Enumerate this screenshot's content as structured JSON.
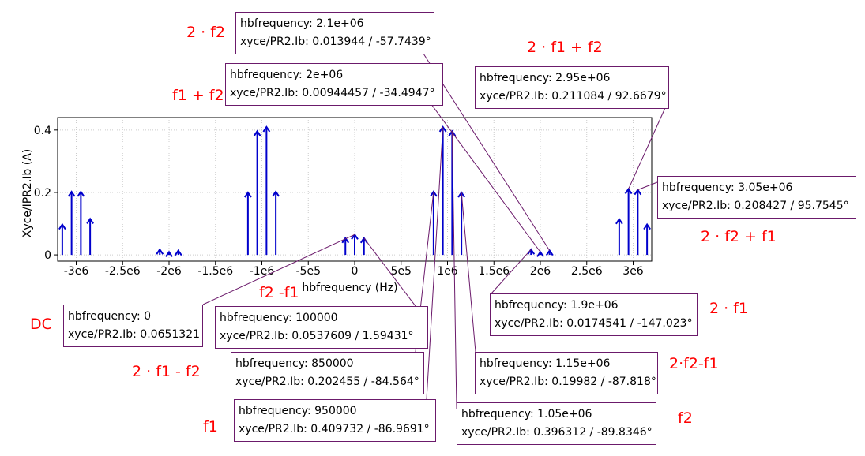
{
  "chart_data": {
    "type": "stem",
    "xlabel": "hbfrequency (Hz)",
    "ylabel": "Xyce/IPR2.Ib (A)",
    "xlim": [
      -3200000,
      3200000
    ],
    "ylim": [
      -0.02,
      0.44
    ],
    "x_ticks": [
      {
        "value": -3000000,
        "label": "-3e6"
      },
      {
        "value": -2500000,
        "label": "-2.5e6"
      },
      {
        "value": -2000000,
        "label": "-2e6"
      },
      {
        "value": -1500000,
        "label": "-1.5e6"
      },
      {
        "value": -1000000,
        "label": "-1e6"
      },
      {
        "value": -500000,
        "label": "-5e5"
      },
      {
        "value": 0,
        "label": "0"
      },
      {
        "value": 500000,
        "label": "5e5"
      },
      {
        "value": 1000000,
        "label": "1e6"
      },
      {
        "value": 1500000,
        "label": "1.5e6"
      },
      {
        "value": 2000000,
        "label": "2e6"
      },
      {
        "value": 2500000,
        "label": "2.5e6"
      },
      {
        "value": 3000000,
        "label": "3e6"
      }
    ],
    "y_ticks": [
      {
        "value": 0,
        "label": "0"
      },
      {
        "value": 0.2,
        "label": "0.2"
      },
      {
        "value": 0.4,
        "label": "0.4"
      }
    ],
    "grid": true,
    "series_color": "#0000cc",
    "x": [
      -3150000,
      -3050000,
      -2950000,
      -2850000,
      -2100000,
      -2000000,
      -1900000,
      -1150000,
      -1050000,
      -950000,
      -850000,
      -100000,
      0,
      100000,
      850000,
      950000,
      1050000,
      1150000,
      1900000,
      2000000,
      2100000,
      2850000,
      2950000,
      3050000,
      3150000
    ],
    "y": [
      0.0975,
      0.2024,
      0.2024,
      0.1155,
      0.0174,
      0.0094,
      0.0139,
      0.1998,
      0.3963,
      0.4097,
      0.2025,
      0.0538,
      0.0651,
      0.0538,
      0.2025,
      0.4097,
      0.3963,
      0.1998,
      0.0175,
      0.0094,
      0.0139,
      0.1145,
      0.2111,
      0.2084,
      0.0975
    ]
  },
  "annotations": [
    {
      "key": "a2100k",
      "freq": "hbfrequency: 2.1e+06",
      "value": "xyce/PR2.Ib: 0.013944 / -57.7439°"
    },
    {
      "key": "a2000k",
      "freq": "hbfrequency: 2e+06",
      "value": "xyce/PR2.Ib: 0.00944457 / -34.4947°"
    },
    {
      "key": "a2950k",
      "freq": "hbfrequency: 2.95e+06",
      "value": "xyce/PR2.Ib: 0.211084 / 92.6679°"
    },
    {
      "key": "a3050k",
      "freq": "hbfrequency: 3.05e+06",
      "value": "xyce/PR2.Ib: 0.208427 / 95.7545°"
    },
    {
      "key": "a0",
      "freq": "hbfrequency: 0",
      "value": "xyce/PR2.Ib: 0.0651321"
    },
    {
      "key": "a100k",
      "freq": "hbfrequency: 100000",
      "value": "xyce/PR2.Ib: 0.0537609 / 1.59431°"
    },
    {
      "key": "a1900k",
      "freq": "hbfrequency: 1.9e+06",
      "value": "xyce/PR2.Ib: 0.0174541 / -147.023°"
    },
    {
      "key": "a850k",
      "freq": "hbfrequency: 850000",
      "value": "xyce/PR2.Ib: 0.202455 / -84.564°"
    },
    {
      "key": "a1150k",
      "freq": "hbfrequency: 1.15e+06",
      "value": "xyce/PR2.Ib: 0.19982 / -87.818°"
    },
    {
      "key": "a950k",
      "freq": "hbfrequency: 950000",
      "value": "xyce/PR2.Ib: 0.409732 / -86.9691°"
    },
    {
      "key": "a1050k",
      "freq": "hbfrequency: 1.05e+06",
      "value": "xyce/PR2.Ib: 0.396312 / -89.8346°"
    }
  ],
  "labels": {
    "two_f2": "2 · f2",
    "f1_plus_f2": "f1 + f2",
    "two_f1_plus_f2": "2 · f1 + f2",
    "two_f2_plus_f1": "2 · f2 + f1",
    "dc": "DC",
    "f2_minus_f1": "f2 -f1",
    "two_f1": "2 · f1",
    "two_f1_minus_f2": "2 · f1 - f2",
    "two_f2_minus_f1": "2·f2-f1",
    "f1": "f1",
    "f2": "f2"
  },
  "colors": {
    "stem": "#0000cc",
    "leader": "#6b1a6b",
    "label": "#ff0000",
    "grid": "#cccccc"
  }
}
